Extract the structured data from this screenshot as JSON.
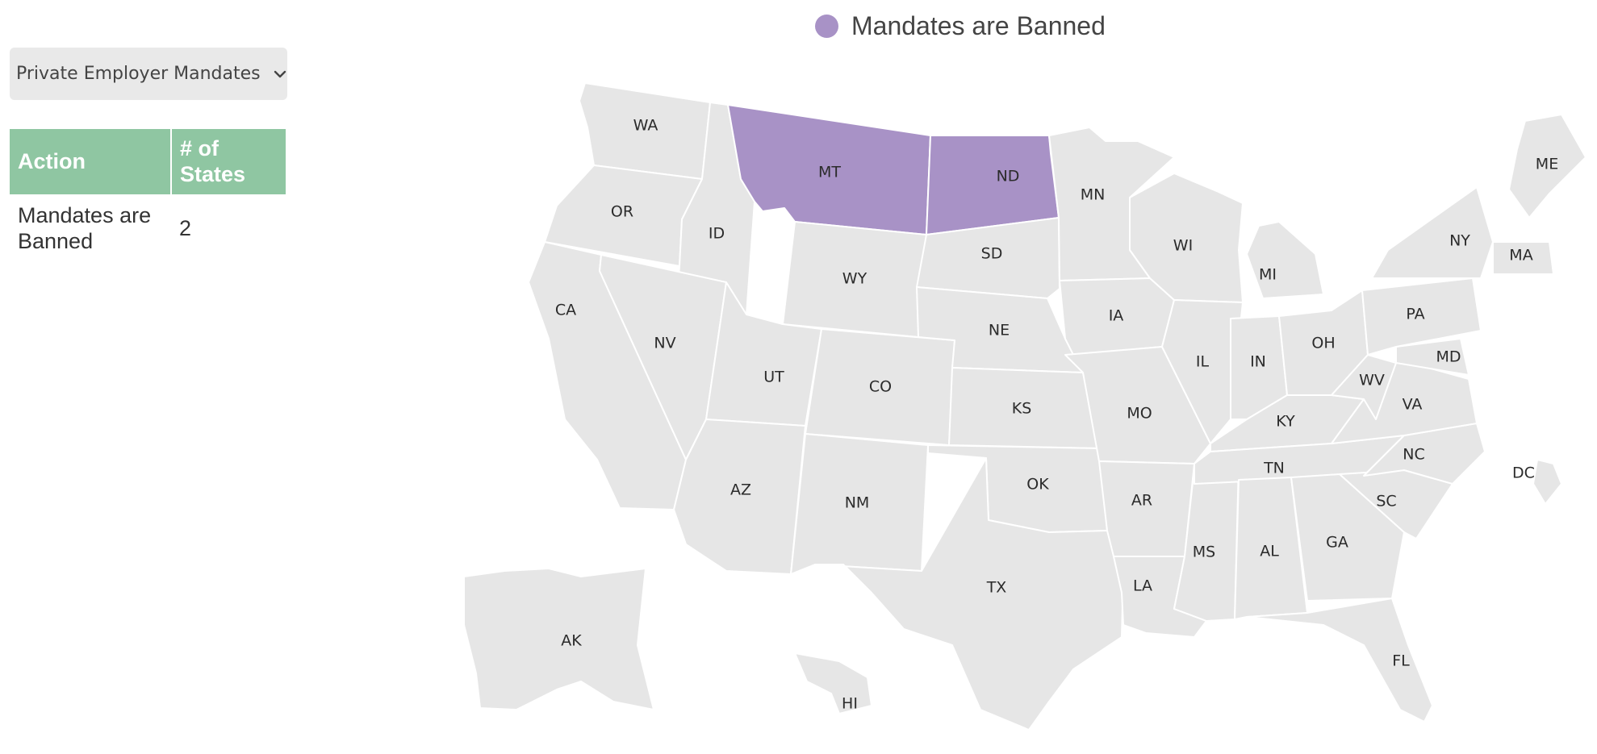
{
  "filter": {
    "selected": "Private Employer Mandates",
    "icon": "chevron-down-icon"
  },
  "table": {
    "headers": [
      "Action",
      "# of States"
    ],
    "rows": [
      {
        "action": "Mandates are Banned",
        "count": "2"
      }
    ]
  },
  "legend": {
    "label": "Mandates are Banned",
    "color": "#a892c6"
  },
  "map": {
    "default_color": "#e6e6e6",
    "highlight_color": "#a892c6",
    "states": [
      {
        "id": "WA",
        "label": "WA",
        "status": "none"
      },
      {
        "id": "OR",
        "label": "OR",
        "status": "none"
      },
      {
        "id": "CA",
        "label": "CA",
        "status": "none"
      },
      {
        "id": "ID",
        "label": "ID",
        "status": "none"
      },
      {
        "id": "NV",
        "label": "NV",
        "status": "none"
      },
      {
        "id": "MT",
        "label": "MT",
        "status": "banned"
      },
      {
        "id": "WY",
        "label": "WY",
        "status": "none"
      },
      {
        "id": "UT",
        "label": "UT",
        "status": "none"
      },
      {
        "id": "AZ",
        "label": "AZ",
        "status": "none"
      },
      {
        "id": "CO",
        "label": "CO",
        "status": "none"
      },
      {
        "id": "NM",
        "label": "NM",
        "status": "none"
      },
      {
        "id": "ND",
        "label": "ND",
        "status": "banned"
      },
      {
        "id": "SD",
        "label": "SD",
        "status": "none"
      },
      {
        "id": "NE",
        "label": "NE",
        "status": "none"
      },
      {
        "id": "KS",
        "label": "KS",
        "status": "none"
      },
      {
        "id": "OK",
        "label": "OK",
        "status": "none"
      },
      {
        "id": "TX",
        "label": "TX",
        "status": "none"
      },
      {
        "id": "MN",
        "label": "MN",
        "status": "none"
      },
      {
        "id": "IA",
        "label": "IA",
        "status": "none"
      },
      {
        "id": "MO",
        "label": "MO",
        "status": "none"
      },
      {
        "id": "AR",
        "label": "AR",
        "status": "none"
      },
      {
        "id": "LA",
        "label": "LA",
        "status": "none"
      },
      {
        "id": "WI",
        "label": "WI",
        "status": "none"
      },
      {
        "id": "IL",
        "label": "IL",
        "status": "none"
      },
      {
        "id": "MS",
        "label": "MS",
        "status": "none"
      },
      {
        "id": "MI",
        "label": "MI",
        "status": "none"
      },
      {
        "id": "IN",
        "label": "IN",
        "status": "none"
      },
      {
        "id": "OH",
        "label": "OH",
        "status": "none"
      },
      {
        "id": "KY",
        "label": "KY",
        "status": "none"
      },
      {
        "id": "TN",
        "label": "TN",
        "status": "none"
      },
      {
        "id": "AL",
        "label": "AL",
        "status": "none"
      },
      {
        "id": "GA",
        "label": "GA",
        "status": "none"
      },
      {
        "id": "FL",
        "label": "FL",
        "status": "none"
      },
      {
        "id": "SC",
        "label": "SC",
        "status": "none"
      },
      {
        "id": "NC",
        "label": "NC",
        "status": "none"
      },
      {
        "id": "VA",
        "label": "VA",
        "status": "none"
      },
      {
        "id": "WV",
        "label": "WV",
        "status": "none"
      },
      {
        "id": "MD",
        "label": "MD",
        "status": "none"
      },
      {
        "id": "PA",
        "label": "PA",
        "status": "none"
      },
      {
        "id": "NY",
        "label": "NY",
        "status": "none"
      },
      {
        "id": "MA",
        "label": "MA",
        "status": "none"
      },
      {
        "id": "ME",
        "label": "ME",
        "status": "none"
      },
      {
        "id": "DC",
        "label": "DC",
        "status": "none"
      },
      {
        "id": "AK",
        "label": "AK",
        "status": "none"
      },
      {
        "id": "HI",
        "label": "HI",
        "status": "none"
      }
    ]
  }
}
